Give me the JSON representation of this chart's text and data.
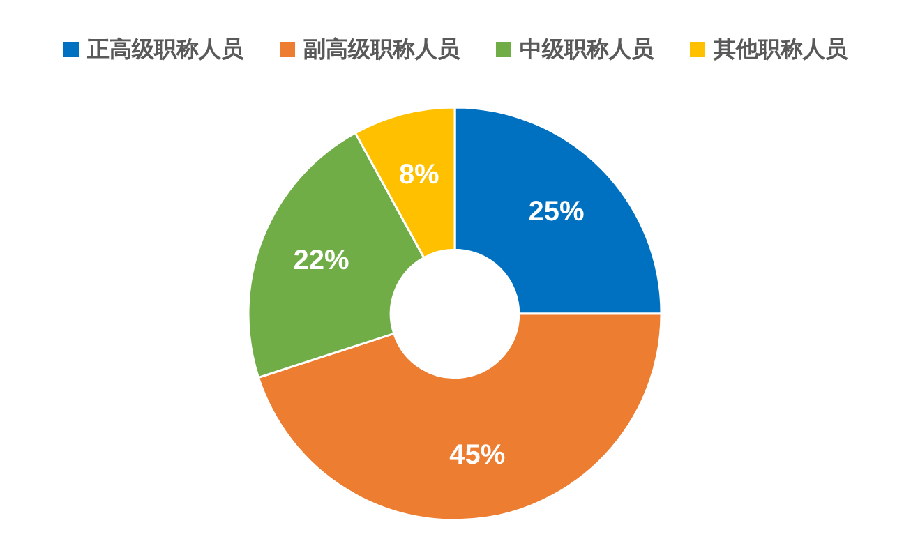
{
  "chart_data": {
    "type": "donut",
    "categories": [
      "正高级职称人员",
      "副高级职称人员",
      "中级职称人员",
      "其他职称人员"
    ],
    "values": [
      25,
      45,
      22,
      8
    ],
    "colors": [
      "#0070c0",
      "#ed7d31",
      "#70ad47",
      "#ffc000"
    ],
    "value_labels": [
      "25%",
      "45%",
      "22%",
      "8%"
    ],
    "legend": "top"
  }
}
